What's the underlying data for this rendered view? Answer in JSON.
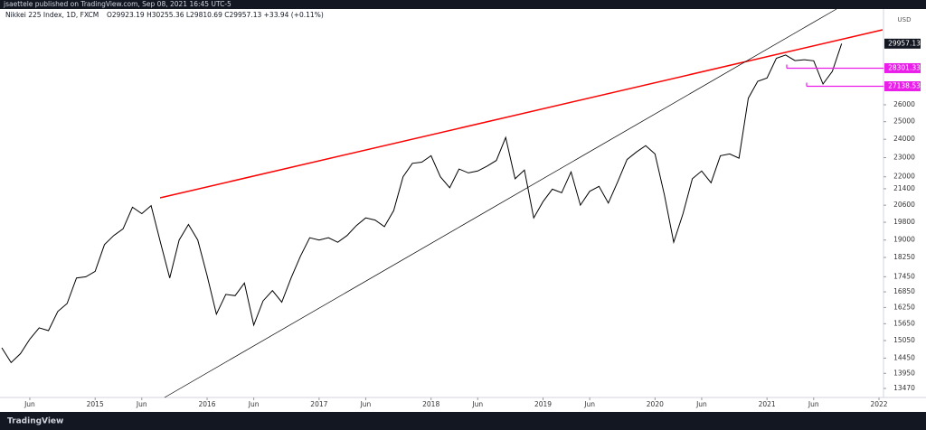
{
  "header": {
    "published": "jsaettele published on TradingView.com, Sep 08, 2021 16:45 UTC-5",
    "brand": "TradingView"
  },
  "chart_data": {
    "type": "line",
    "title": "Nikkei 225 Index, 1D, FXCM",
    "ohlc": "O29923.19 H30255.36 L29810.69 C29957.13 +33.94 (+0.11%)",
    "unit": "USD",
    "color": "#000000",
    "log": true,
    "grid": false,
    "x": [
      "2014-03",
      "2014-04",
      "2014-05",
      "2014-06",
      "2014-07",
      "2014-08",
      "2014-09",
      "2014-10",
      "2014-11",
      "2014-12",
      "2015-01",
      "2015-02",
      "2015-03",
      "2015-04",
      "2015-05",
      "2015-06",
      "2015-07",
      "2015-08",
      "2015-09",
      "2015-10",
      "2015-11",
      "2015-12",
      "2016-01",
      "2016-02",
      "2016-03",
      "2016-04",
      "2016-05",
      "2016-06",
      "2016-07",
      "2016-08",
      "2016-09",
      "2016-10",
      "2016-11",
      "2016-12",
      "2017-01",
      "2017-02",
      "2017-03",
      "2017-04",
      "2017-05",
      "2017-06",
      "2017-07",
      "2017-08",
      "2017-09",
      "2017-10",
      "2017-11",
      "2017-12",
      "2018-01",
      "2018-02",
      "2018-03",
      "2018-04",
      "2018-05",
      "2018-06",
      "2018-07",
      "2018-08",
      "2018-09",
      "2018-10",
      "2018-11",
      "2018-12",
      "2019-01",
      "2019-02",
      "2019-03",
      "2019-04",
      "2019-05",
      "2019-06",
      "2019-07",
      "2019-08",
      "2019-09",
      "2019-10",
      "2019-11",
      "2019-12",
      "2020-01",
      "2020-02",
      "2020-03",
      "2020-04",
      "2020-05",
      "2020-06",
      "2020-07",
      "2020-08",
      "2020-09",
      "2020-10",
      "2020-11",
      "2020-12",
      "2021-01",
      "2021-02",
      "2021-03",
      "2021-04",
      "2021-05",
      "2021-06",
      "2021-07",
      "2021-08",
      "2021-09"
    ],
    "values": [
      14800,
      14300,
      14600,
      15100,
      15500,
      15400,
      16100,
      16400,
      17400,
      17450,
      17670,
      18800,
      19200,
      19500,
      20500,
      20200,
      20580,
      18900,
      17400,
      19000,
      19700,
      19000,
      17500,
      16000,
      16750,
      16700,
      17200,
      15600,
      16500,
      16900,
      16450,
      17400,
      18300,
      19100,
      19000,
      19100,
      18900,
      19200,
      19650,
      20000,
      19900,
      19600,
      20350,
      22000,
      22700,
      22760,
      23100,
      22000,
      21450,
      22400,
      22200,
      22300,
      22550,
      22850,
      24100,
      21900,
      22350,
      20000,
      20770,
      21380,
      21200,
      22250,
      20600,
      21270,
      21520,
      20700,
      21750,
      22900,
      23300,
      23650,
      23200,
      21100,
      18900,
      20200,
      21900,
      22300,
      21700,
      23100,
      23200,
      22970,
      26400,
      27450,
      27660,
      28960,
      29180,
      28800,
      28860,
      28790,
      27280,
      28090,
      29957.13
    ],
    "xlim": [
      "2014-03",
      "2022-01"
    ],
    "xticks": [
      {
        "value": "2014-06",
        "label": "Jun"
      },
      {
        "value": "2015-01",
        "label": "2015"
      },
      {
        "value": "2015-06",
        "label": "Jun"
      },
      {
        "value": "2016-01",
        "label": "2016"
      },
      {
        "value": "2016-06",
        "label": "Jun"
      },
      {
        "value": "2017-01",
        "label": "2017"
      },
      {
        "value": "2017-06",
        "label": "Jun"
      },
      {
        "value": "2018-01",
        "label": "2018"
      },
      {
        "value": "2018-06",
        "label": "Jun"
      },
      {
        "value": "2019-01",
        "label": "2019"
      },
      {
        "value": "2019-06",
        "label": "Jun"
      },
      {
        "value": "2020-01",
        "label": "2020"
      },
      {
        "value": "2020-06",
        "label": "Jun"
      },
      {
        "value": "2021-01",
        "label": "2021"
      },
      {
        "value": "2021-06",
        "label": "Jun"
      },
      {
        "value": "2022-01",
        "label": "2022"
      }
    ],
    "ylim": [
      13190,
      32460
    ],
    "yticks": [
      13470,
      13950,
      14450,
      15050,
      15650,
      16250,
      16850,
      17450,
      18250,
      19000,
      19800,
      20600,
      21400,
      22000,
      23000,
      24000,
      25000,
      26000
    ],
    "levels": [
      {
        "value": 28301.33,
        "color": "#e91ee9"
      },
      {
        "value": 27138.53,
        "color": "#e91ee9"
      }
    ]
  }
}
